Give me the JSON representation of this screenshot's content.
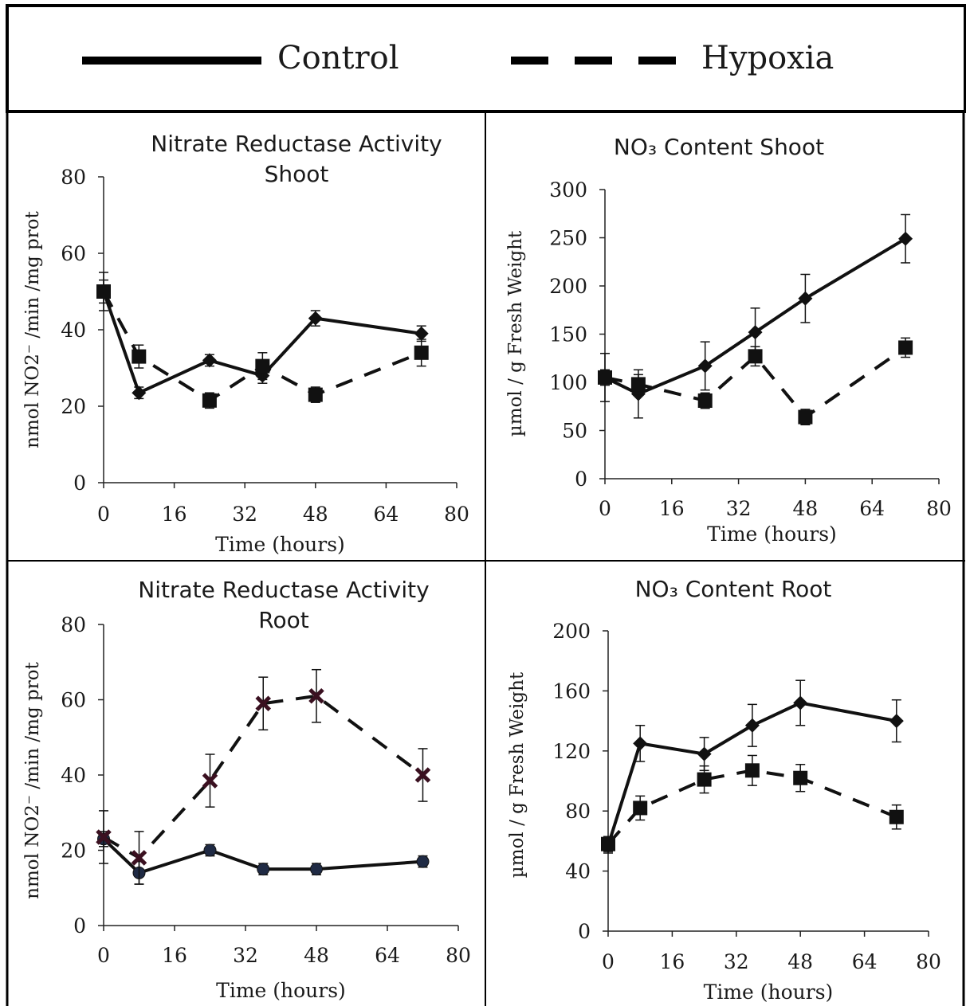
{
  "legend": {
    "items": [
      {
        "label": "Control",
        "style": "solid"
      },
      {
        "label": "Hypoxia",
        "style": "dashed"
      }
    ]
  },
  "colors": {
    "line": "#111111",
    "axis": "#222222",
    "border": "#000000",
    "background": "#ffffff"
  },
  "chart_data": [
    {
      "type": "line",
      "title": [
        "Nitrate Reductase Activity",
        "Shoot"
      ],
      "xlabel": "Time (hours)",
      "ylabel": "nmol NO2⁻ /min /mg prot",
      "xlim": [
        0,
        80
      ],
      "ylim": [
        0,
        80
      ],
      "xticks": [
        0,
        16,
        32,
        48,
        64,
        80
      ],
      "yticks": [
        0,
        20,
        40,
        60,
        80
      ],
      "series": [
        {
          "name": "Control",
          "style": "solid",
          "marker": "diamond",
          "x": [
            0,
            8,
            24,
            36,
            48,
            72
          ],
          "y": [
            50,
            23.5,
            32,
            28,
            43,
            39
          ],
          "err": [
            5,
            1.5,
            1.5,
            2,
            2,
            2
          ]
        },
        {
          "name": "Hypoxia",
          "style": "dashed",
          "marker": "square",
          "x": [
            0,
            8,
            24,
            36,
            48,
            72
          ],
          "y": [
            50,
            33,
            21.5,
            30.5,
            23,
            34
          ],
          "err": [
            3,
            3,
            2,
            3.5,
            2,
            3.5
          ]
        }
      ]
    },
    {
      "type": "line",
      "title": [
        "NO₃ Content Shoot"
      ],
      "xlabel": "Time (hours)",
      "ylabel": "µmol / g Fresh Weight",
      "xlim": [
        0,
        80
      ],
      "ylim": [
        0,
        300
      ],
      "xticks": [
        0,
        16,
        32,
        48,
        64,
        80
      ],
      "yticks": [
        0,
        50,
        100,
        150,
        200,
        250,
        300
      ],
      "series": [
        {
          "name": "Control",
          "style": "solid",
          "marker": "diamond",
          "x": [
            0,
            8,
            24,
            36,
            48,
            72
          ],
          "y": [
            105,
            88,
            117,
            152,
            187,
            249
          ],
          "err": [
            25,
            25,
            25,
            25,
            25,
            25
          ]
        },
        {
          "name": "Hypoxia",
          "style": "dashed",
          "marker": "square",
          "x": [
            0,
            8,
            24,
            36,
            48,
            72
          ],
          "y": [
            105,
            98,
            81,
            127,
            64,
            136
          ],
          "err": [
            8,
            10,
            8,
            10,
            8,
            10
          ]
        }
      ]
    },
    {
      "type": "line",
      "title": [
        "Nitrate Reductase Activity",
        "Root"
      ],
      "xlabel": "Time (hours)",
      "ylabel": "nmol NO2⁻ /min /mg prot",
      "xlim": [
        0,
        80
      ],
      "ylim": [
        0,
        80
      ],
      "xticks": [
        0,
        16,
        32,
        48,
        64,
        80
      ],
      "yticks": [
        0,
        20,
        40,
        60,
        80
      ],
      "series": [
        {
          "name": "Control",
          "style": "solid",
          "marker": "circle",
          "x": [
            0,
            8,
            24,
            36,
            48,
            72
          ],
          "y": [
            23,
            14,
            20,
            15,
            15,
            17
          ],
          "err": [
            2,
            3,
            1.5,
            1.5,
            1.5,
            1.5
          ]
        },
        {
          "name": "Hypoxia",
          "style": "dashed",
          "marker": "x",
          "x": [
            0,
            8,
            24,
            36,
            48,
            72
          ],
          "y": [
            23.5,
            18,
            38.5,
            59,
            61,
            40
          ],
          "err": [
            7,
            7,
            7,
            7,
            7,
            7
          ]
        }
      ]
    },
    {
      "type": "line",
      "title": [
        "NO₃ Content Root"
      ],
      "xlabel": "Time (hours)",
      "ylabel": "µmol / g Fresh Weight",
      "xlim": [
        0,
        80
      ],
      "ylim": [
        0,
        200
      ],
      "xticks": [
        0,
        16,
        32,
        48,
        64,
        80
      ],
      "yticks": [
        0,
        40,
        80,
        120,
        160,
        200
      ],
      "series": [
        {
          "name": "Control",
          "style": "solid",
          "marker": "diamond",
          "x": [
            0,
            8,
            24,
            36,
            48,
            72
          ],
          "y": [
            57,
            125,
            118,
            137,
            152,
            140
          ],
          "err": [
            5,
            12,
            11,
            14,
            15,
            14
          ]
        },
        {
          "name": "Hypoxia",
          "style": "dashed",
          "marker": "square",
          "x": [
            0,
            8,
            24,
            36,
            48,
            72
          ],
          "y": [
            58,
            82,
            101,
            107,
            102,
            76
          ],
          "err": [
            5,
            8,
            9,
            10,
            9,
            8
          ]
        }
      ]
    }
  ]
}
